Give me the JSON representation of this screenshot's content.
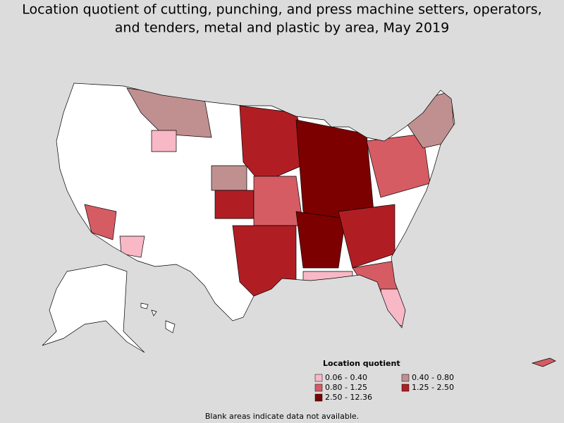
{
  "title_lines": [
    "Location quotient of cutting, punching, and press machine setters, operators,",
    "and tenders, metal and plastic by area, May 2019"
  ],
  "legend": {
    "title": "Location quotient",
    "items": [
      {
        "label": "0.06 - 0.40",
        "color": "#f9b8c6"
      },
      {
        "label": "0.40 - 0.80",
        "color": "#c09090"
      },
      {
        "label": "0.80 - 1.25",
        "color": "#d65c64"
      },
      {
        "label": "1.25 - 2.50",
        "color": "#b01e24"
      },
      {
        "label": "2.50 - 12.36",
        "color": "#7d0000"
      }
    ]
  },
  "note": "Blank areas indicate data not available."
}
